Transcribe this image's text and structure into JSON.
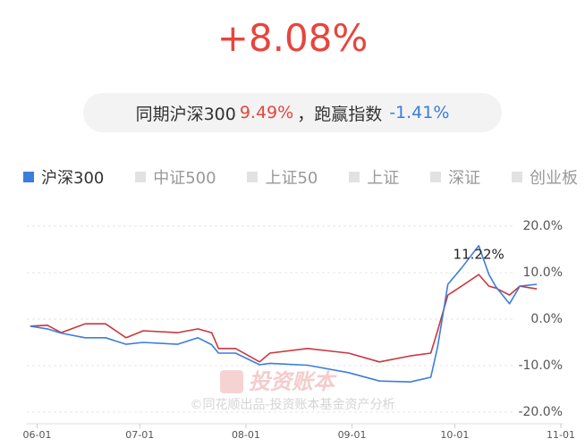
{
  "chart_data": {
    "type": "line",
    "title": "+8.08%",
    "subtitle": {
      "prefix": "同期沪深300",
      "index_return": "9.49%",
      "middle": "，跑赢指数",
      "excess": "-1.41%"
    },
    "legend": [
      {
        "name": "沪深300",
        "color": "#3b7ddd"
      },
      {
        "name": "中证500",
        "color": "#e2e2e2"
      },
      {
        "name": "上证50",
        "color": "#e2e2e2"
      },
      {
        "name": "上证",
        "color": "#e2e2e2"
      },
      {
        "name": "深证",
        "color": "#e2e2e2"
      },
      {
        "name": "创业板",
        "color": "#e2e2e2"
      }
    ],
    "annotation": "11.22%",
    "watermark": "©同花顺出品-投资账本基金资产分析",
    "watermark_logo": "投资账本",
    "x": [
      -2,
      3,
      7,
      14,
      20,
      26,
      31,
      41,
      47,
      51,
      53,
      58,
      65,
      68,
      79,
      91,
      100,
      109,
      115,
      117,
      120,
      124,
      129,
      132,
      134,
      138,
      141,
      146
    ],
    "series": [
      {
        "color": "#c9373d",
        "values": [
          -1.5,
          -1.3,
          -2.9,
          -1,
          -1,
          -4.0,
          -2.5,
          -2.9,
          -2.1,
          -2.9,
          -6.3,
          -6.3,
          -9.2,
          -7.3,
          -6.3,
          -7.3,
          -9.2,
          -7.9,
          -7.3,
          -2.5,
          5.2,
          7.1,
          9.6,
          7.1,
          6.7,
          5.2,
          7.1,
          6.5
        ]
      },
      {
        "color": "#3b7ddd",
        "values": [
          -1.5,
          -2.1,
          -3.0,
          -4.0,
          -4.0,
          -5.4,
          -5.0,
          -5.4,
          -4.0,
          -5.5,
          -7.3,
          -7.3,
          -9.8,
          -9.5,
          -9.9,
          -11.5,
          -13.3,
          -13.5,
          -12.5,
          -6,
          7.5,
          11,
          15.8,
          9.6,
          7.0,
          3.3,
          7.1,
          7.5
        ]
      }
    ],
    "xlim": [
      -3,
      153
    ],
    "xticks": [
      {
        "value": 0,
        "label": "06-01"
      },
      {
        "value": 30,
        "label": "07-01"
      },
      {
        "value": 61,
        "label": "08-01"
      },
      {
        "value": 92,
        "label": "09-01"
      },
      {
        "value": 122,
        "label": "10-01"
      },
      {
        "value": 153,
        "label": "11-01"
      }
    ],
    "ylim": [
      -20,
      20
    ],
    "yticks": [
      {
        "value": 20,
        "label": "20.0%"
      },
      {
        "value": 10,
        "label": "10.0%"
      },
      {
        "value": 0,
        "label": "0.0%"
      },
      {
        "value": -10,
        "label": "-10.0%"
      },
      {
        "value": -20,
        "label": "-20.0%"
      }
    ],
    "grid": true
  }
}
